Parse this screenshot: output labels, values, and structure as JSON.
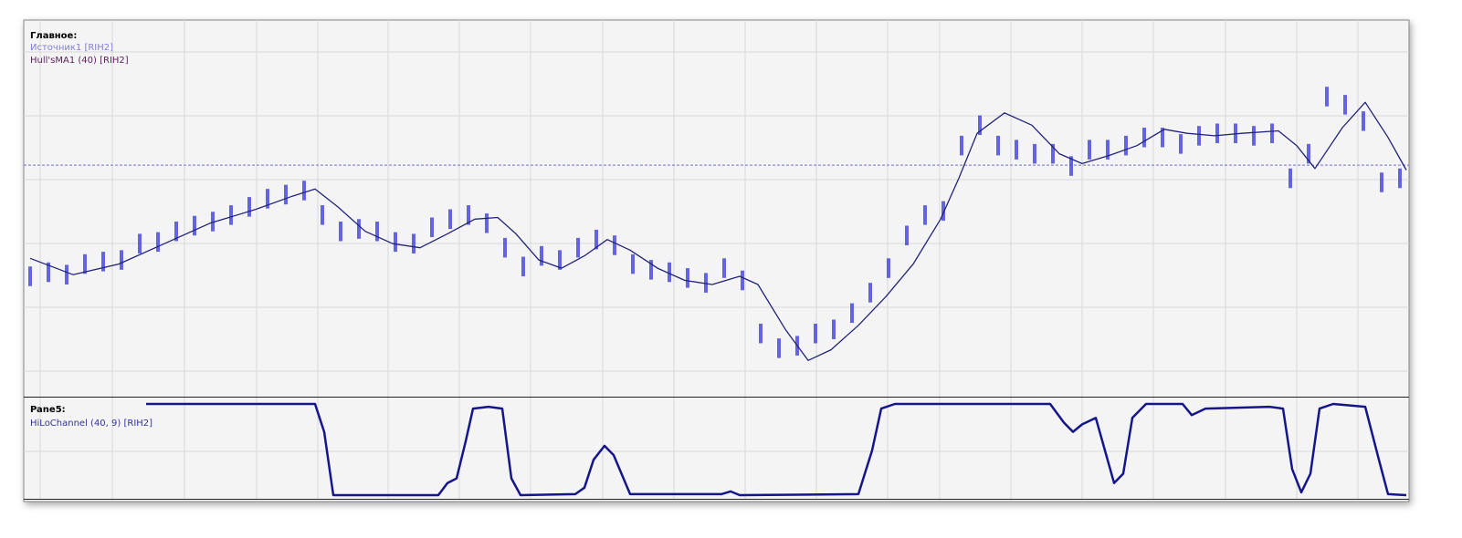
{
  "chart_data": [
    {
      "type": "candlestick",
      "title": "Главное:",
      "xlim": [
        0,
        1507
      ],
      "ylim": [
        0,
        413
      ],
      "reference_line": 261,
      "grid": true,
      "series": [
        {
          "name": "Источник1 [RIH2]",
          "color": "#4b4bd6",
          "x": [
            0,
            20,
            40,
            60,
            80,
            100,
            120,
            140,
            160,
            180,
            200,
            220,
            240,
            260,
            280,
            300,
            320,
            340,
            360,
            380,
            400,
            420,
            440,
            460,
            480,
            500,
            520,
            540,
            560,
            580,
            600,
            620,
            640,
            660,
            680,
            700,
            720,
            740,
            760,
            780,
            800,
            820,
            840,
            860,
            880,
            900,
            920,
            940,
            960,
            980,
            1000,
            1020,
            1040,
            1060,
            1080,
            1100,
            1120,
            1140,
            1160,
            1180,
            1200,
            1220,
            1240,
            1260,
            1280,
            1300,
            1320,
            1340,
            1360,
            1380,
            1400,
            1420,
            1440,
            1460,
            1480,
            1500
          ],
          "high": [
            137,
            142,
            139,
            152,
            155,
            157,
            177,
            179,
            192,
            199,
            204,
            212,
            222,
            232,
            237,
            242,
            212,
            192,
            195,
            192,
            179,
            177,
            197,
            207,
            212,
            202,
            172,
            149,
            162,
            157,
            172,
            182,
            175,
            152,
            145,
            142,
            135,
            129,
            147,
            132,
            67,
            49,
            52,
            67,
            72,
            92,
            117,
            147,
            187,
            212,
            217,
            297,
            322,
            297,
            292,
            287,
            287,
            272,
            292,
            292,
            297,
            307,
            307,
            299,
            309,
            312,
            312,
            309,
            312,
            257,
            287,
            357,
            347,
            327,
            252,
            257
          ],
          "low": [
            113,
            118,
            115,
            128,
            131,
            133,
            153,
            155,
            168,
            175,
            180,
            188,
            198,
            208,
            213,
            218,
            188,
            168,
            171,
            168,
            155,
            153,
            173,
            183,
            188,
            178,
            148,
            125,
            138,
            133,
            148,
            158,
            151,
            128,
            121,
            118,
            111,
            105,
            123,
            108,
            43,
            25,
            28,
            43,
            48,
            68,
            93,
            123,
            163,
            188,
            193,
            273,
            298,
            273,
            268,
            263,
            263,
            248,
            268,
            268,
            273,
            283,
            283,
            275,
            285,
            288,
            288,
            285,
            288,
            233,
            263,
            333,
            323,
            303,
            228,
            233
          ]
        },
        {
          "name": "Hull'sMA1 (40) [RIH2]",
          "color": "#23237a",
          "x": [
            0,
            47,
            97,
            147,
            197,
            247,
            287,
            312,
            337,
            367,
            397,
            427,
            457,
            487,
            512,
            532,
            557,
            582,
            607,
            632,
            657,
            687,
            717,
            747,
            777,
            797,
            827,
            852,
            877,
            907,
            937,
            967,
            997,
            1017,
            1037,
            1067,
            1097,
            1127,
            1152,
            1182,
            1212,
            1242,
            1267,
            1297,
            1327,
            1367,
            1387,
            1407,
            1437,
            1462,
            1487,
            1507
          ],
          "values": [
            147,
            127,
            140,
            165,
            190,
            207,
            223,
            232,
            210,
            180,
            165,
            160,
            177,
            195,
            197,
            177,
            145,
            135,
            150,
            170,
            157,
            135,
            120,
            115,
            125,
            115,
            60,
            22,
            35,
            65,
            100,
            140,
            195,
            245,
            300,
            325,
            310,
            275,
            263,
            273,
            285,
            305,
            300,
            297,
            300,
            303,
            285,
            257,
            307,
            338,
            295,
            255
          ]
        }
      ]
    },
    {
      "type": "line",
      "title": "Pane5:",
      "xlim": [
        0,
        1507
      ],
      "ylim": [
        0,
        100
      ],
      "grid": true,
      "series": [
        {
          "name": "HiLoChannel (40, 9) [RIH2]",
          "color": "#15158c",
          "x": [
            127,
            312,
            322,
            332,
            447,
            457,
            467,
            477,
            485,
            502,
            517,
            527,
            537,
            597,
            607,
            617,
            629,
            639,
            657,
            757,
            767,
            777,
            907,
            922,
            932,
            947,
            1117,
            1132,
            1142,
            1152,
            1167,
            1177,
            1187,
            1197,
            1207,
            1222,
            1262,
            1272,
            1287,
            1357,
            1372,
            1382,
            1392,
            1402,
            1412,
            1427,
            1462,
            1477,
            1487,
            1507
          ],
          "values": [
            100,
            100,
            70,
            2,
            2,
            15,
            20,
            60,
            95,
            97,
            95,
            20,
            2,
            3,
            10,
            40,
            55,
            45,
            3,
            3,
            6,
            2,
            3,
            50,
            95,
            100,
            100,
            80,
            70,
            78,
            85,
            50,
            15,
            25,
            85,
            100,
            100,
            88,
            95,
            97,
            95,
            30,
            5,
            25,
            95,
            100,
            97,
            40,
            3,
            2
          ]
        }
      ]
    }
  ]
}
